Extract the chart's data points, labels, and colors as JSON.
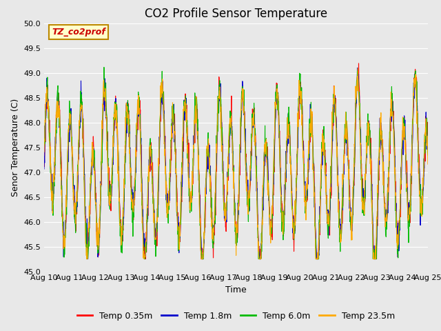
{
  "title": "CO2 Profile Sensor Temperature",
  "xlabel": "Time",
  "ylabel": "Senor Temperature (C)",
  "annotation": "TZ_co2prof",
  "ylim": [
    45.0,
    50.0
  ],
  "yticks": [
    45.0,
    45.5,
    46.0,
    46.5,
    47.0,
    47.5,
    48.0,
    48.5,
    49.0,
    49.5,
    50.0
  ],
  "xtick_labels": [
    "Aug 10",
    "Aug 11",
    "Aug 12",
    "Aug 13",
    "Aug 14",
    "Aug 15",
    "Aug 16",
    "Aug 17",
    "Aug 18",
    "Aug 19",
    "Aug 20",
    "Aug 21",
    "Aug 22",
    "Aug 23",
    "Aug 24",
    "Aug 25"
  ],
  "series": [
    {
      "label": "Temp 0.35m",
      "color": "#ff0000"
    },
    {
      "label": "Temp 1.8m",
      "color": "#0000cc"
    },
    {
      "label": "Temp 6.0m",
      "color": "#00bb00"
    },
    {
      "label": "Temp 23.5m",
      "color": "#ffaa00"
    }
  ],
  "background_color": "#e8e8e8",
  "plot_bg_color": "#e8e8e8",
  "annotation_box_facecolor": "#ffffcc",
  "annotation_text_color": "#cc0000",
  "annotation_border_color": "#bb8800",
  "title_fontsize": 12,
  "axis_label_fontsize": 9,
  "tick_fontsize": 8,
  "legend_fontsize": 9,
  "n_points": 1500,
  "seed": 7
}
